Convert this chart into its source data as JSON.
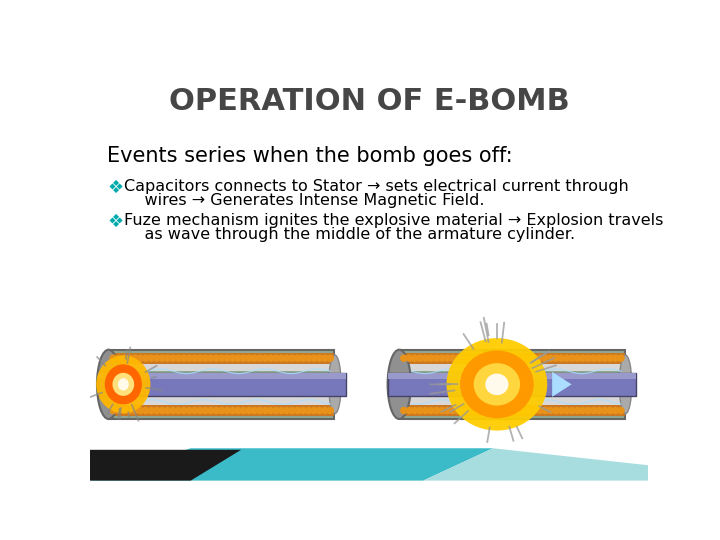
{
  "title": "OPERATION OF E-BOMB",
  "title_color": "#464646",
  "title_fontsize": 22,
  "subtitle": "Events series when the bomb goes off:",
  "subtitle_fontsize": 15,
  "subtitle_color": "#000000",
  "bullet_color": "#00AAAA",
  "bullet_fontsize": 11.5,
  "bullet_text_color": "#000000",
  "bullet1_line1": "Capacitors connects to Stator → sets electrical current through",
  "bullet1_line2": "    wires → Generates Intense Magnetic Field.",
  "bullet2_line1": "Fuze mechanism ignites the explosive material → Explosion travels",
  "bullet2_line2": "    as wave through the middle of the armature cylinder.",
  "background_color": "#FFFFFF",
  "bottom_teal_color": "#3BBBC8",
  "bottom_dark_color": "#1A1A1A",
  "bottom_light_color": "#A8DDE0"
}
